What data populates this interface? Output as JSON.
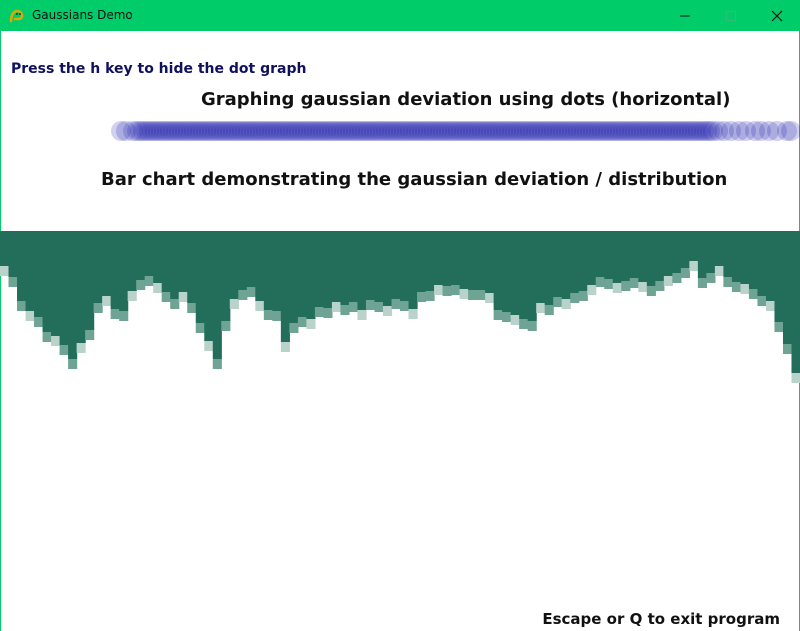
{
  "window": {
    "title": "Gaussians Demo",
    "app_icon": "pygame-snake-icon",
    "controls": {
      "minimize": "minimize-icon",
      "maximize": "maximize-icon",
      "close": "close-icon"
    },
    "titlebar_color": "#00cc6a"
  },
  "labels": {
    "hint": "Press the h key to hide the dot graph",
    "dot_graph_title": "Graphing gaussian deviation using dots (horizontal)",
    "bar_chart_title": "Bar chart demonstrating the gaussian deviation / distribution",
    "exit_hint": "Escape or Q to exit program"
  },
  "colors": {
    "dot": "#1a1aa8",
    "bar": "#226e5a",
    "bar_light": "#6fa394",
    "bar_faint": "#b9d2ca",
    "hint_text": "#10105e"
  },
  "chart_data": [
    {
      "type": "scatter",
      "x": [
        0,
        5,
        12,
        16,
        19,
        22,
        25,
        28,
        31,
        34,
        37,
        40,
        43,
        46,
        49,
        52,
        55,
        58,
        61,
        64,
        67,
        70,
        73,
        76,
        79,
        82,
        85,
        88,
        91,
        94,
        97,
        100,
        103,
        106,
        109,
        112,
        115,
        118,
        121,
        124,
        127,
        130,
        133,
        136,
        139,
        142,
        145,
        148,
        151,
        154,
        157,
        160,
        163,
        166,
        169,
        172,
        175,
        178,
        181,
        184,
        187,
        190,
        193,
        196,
        199,
        202,
        205,
        208,
        211,
        214,
        217,
        220,
        223,
        226,
        229,
        232,
        235,
        238,
        241,
        244,
        247,
        250,
        253,
        256,
        259,
        262,
        265,
        268,
        271,
        274,
        277,
        280,
        283,
        286,
        289,
        292,
        295,
        298,
        301,
        304,
        307,
        310,
        313,
        316,
        319,
        322,
        325,
        328,
        331,
        334,
        337,
        340,
        343,
        346,
        349,
        352,
        355,
        358,
        361,
        364,
        367,
        370,
        373,
        376,
        379,
        382,
        385,
        388,
        391,
        394,
        397,
        400,
        403,
        406,
        409,
        412,
        415,
        418,
        421,
        424,
        427,
        430,
        433,
        436,
        439,
        442,
        445,
        448,
        451,
        454,
        457,
        460,
        463,
        466,
        469,
        472,
        475,
        478,
        481,
        484,
        487,
        490,
        493,
        496,
        499,
        502,
        505,
        508,
        511,
        514,
        517,
        520,
        523,
        526,
        529,
        532,
        535,
        538,
        541,
        544,
        547,
        550,
        553,
        556,
        559,
        562,
        565,
        568,
        571,
        574,
        577,
        580,
        583,
        586,
        589,
        592,
        597,
        603,
        610,
        618,
        625,
        634,
        640,
        648,
        656,
        666,
        670
      ],
      "dot_opacity": 0.2
    },
    {
      "type": "bar",
      "values": [
        45,
        56,
        80,
        90,
        96,
        111,
        115,
        124,
        138,
        122,
        109,
        82,
        75,
        88,
        90,
        70,
        59,
        55,
        62,
        71,
        78,
        71,
        82,
        102,
        120,
        138,
        100,
        78,
        69,
        66,
        80,
        89,
        90,
        121,
        102,
        96,
        98,
        86,
        87,
        81,
        84,
        81,
        89,
        79,
        81,
        85,
        78,
        80,
        88,
        71,
        70,
        64,
        65,
        64,
        68,
        69,
        69,
        72,
        89,
        91,
        94,
        98,
        100,
        82,
        84,
        76,
        78,
        72,
        70,
        64,
        56,
        58,
        62,
        60,
        57,
        61,
        65,
        60,
        55,
        52,
        47,
        40,
        57,
        52,
        45,
        56,
        61,
        63,
        68,
        75,
        80,
        101,
        123,
        152
      ],
      "ylim": [
        0,
        152
      ]
    }
  ]
}
